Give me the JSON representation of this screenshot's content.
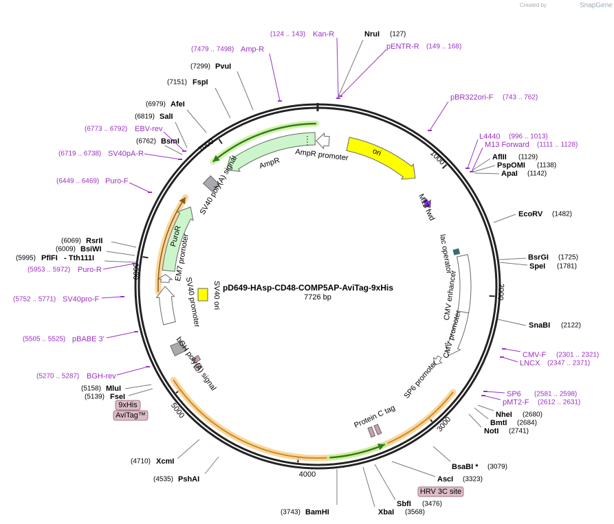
{
  "credit": {
    "created_by": "Created by",
    "brand": "SnapGene"
  },
  "plasmid": {
    "name": "pD649-HAsp-CD48-COMP5AP-AviTag-9xHis",
    "length": "7726 bp"
  },
  "ticks": [
    "1000",
    "2000",
    "3000",
    "4000",
    "5000",
    "6000",
    "7000"
  ],
  "features": [
    "ori",
    "M13 fwd",
    "lac operator",
    "CMV enhancer",
    "CMV promoter",
    "SP6 promoter",
    "Protein C tag",
    "bGH poly(A) signal",
    "SV40 promoter",
    "SV40 ori",
    "EM7 promoter",
    "PuroR",
    "SV40 poly(A) signal",
    "AmpR",
    "AmpR promoter"
  ],
  "enzymes": [
    {
      "name": "NruI",
      "position": "(127)"
    },
    {
      "name": "PvuI",
      "position": "(7299)"
    },
    {
      "name": "FspI",
      "position": "(7151)"
    },
    {
      "name": "AfeI",
      "position": "(6979)"
    },
    {
      "name": "SalI",
      "position": "(6819)"
    },
    {
      "name": "BsmI",
      "position": "(6762)"
    },
    {
      "name": "RsrII",
      "position": "(6069)"
    },
    {
      "name": "BsiWI",
      "position": "(6009)"
    },
    {
      "name": "PflFI",
      "also": "- Tth111I",
      "position": "(5995)"
    },
    {
      "name": "MluI",
      "position": "(5158)"
    },
    {
      "name": "FseI",
      "position": "(5139)"
    },
    {
      "name": "XcmI",
      "position": "(4710)"
    },
    {
      "name": "PshAI",
      "position": "(4535)"
    },
    {
      "name": "BamHI",
      "position": "(3743)"
    },
    {
      "name": "XbaI",
      "position": "(3568)"
    },
    {
      "name": "SbfI",
      "position": "(3476)"
    },
    {
      "name": "AscI",
      "position": "(3323)"
    },
    {
      "name": "BsaBI *",
      "position": "(3079)"
    },
    {
      "name": "NotI",
      "position": "(2741)"
    },
    {
      "name": "BmtI",
      "position": "(2684)"
    },
    {
      "name": "NheI",
      "position": "(2680)"
    },
    {
      "name": "SnaBI",
      "position": "(2122)"
    },
    {
      "name": "SpeI",
      "position": "(1781)"
    },
    {
      "name": "BsrGI",
      "position": "(1725)"
    },
    {
      "name": "EcoRV",
      "position": "(1482)"
    },
    {
      "name": "ApaI",
      "position": "(1142)"
    },
    {
      "name": "PspOMI",
      "position": "(1138)"
    },
    {
      "name": "AflII",
      "position": "(1129)"
    }
  ],
  "primers": [
    {
      "name": "Kan-R",
      "range": "(124 .. 143)"
    },
    {
      "name": "pENTR-R",
      "range": "(149 .. 168)"
    },
    {
      "name": "Amp-R",
      "range": "(7479 .. 7498)"
    },
    {
      "name": "EBV-rev",
      "range": "(6773 .. 6792)"
    },
    {
      "name": "SV40pA-R",
      "range": "(6719 .. 6738)"
    },
    {
      "name": "Puro-F",
      "range": "(6449 .. 6469)"
    },
    {
      "name": "Puro-R",
      "range": "(5953 .. 5972)"
    },
    {
      "name": "SV40pro-F",
      "range": "(5752 .. 5771)"
    },
    {
      "name": "pBABE 3'",
      "range": "(5505 .. 5525)"
    },
    {
      "name": "BGH-rev",
      "range": "(5270 .. 5287)"
    },
    {
      "name": "SP6",
      "range": "(2581 .. 2598)"
    },
    {
      "name": "pMT2-F",
      "range": "(2612 .. 2631)"
    },
    {
      "name": "LNCX",
      "range": "(2347 .. 2371)"
    },
    {
      "name": "CMV-F",
      "range": "(2301 .. 2321)"
    },
    {
      "name": "M13 Forward",
      "range": "(1111 .. 1128)"
    },
    {
      "name": "L4440",
      "range": "(996 .. 1013)"
    },
    {
      "name": "pBR322ori-F",
      "range": "(743 .. 762)"
    }
  ],
  "tags": [
    "9xHis",
    "AviTag™",
    "HRV 3C site"
  ]
}
